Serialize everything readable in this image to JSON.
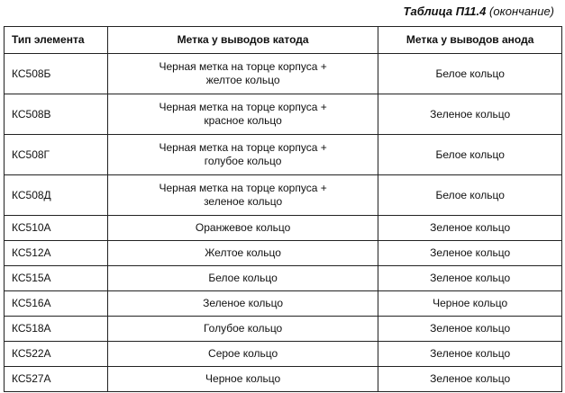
{
  "caption": {
    "label": "Таблица П11.4",
    "note": "(окончание)"
  },
  "table": {
    "headers": [
      "Тип элемента",
      "Метка у выводов катода",
      "Метка у выводов анода"
    ],
    "rows": [
      {
        "type": "КС508Б",
        "cathode": [
          "Черная метка на торце корпуса +",
          "желтое кольцо"
        ],
        "anode": "Белое кольцо"
      },
      {
        "type": "КС508В",
        "cathode": [
          "Черная метка на торце корпуса +",
          "красное кольцо"
        ],
        "anode": "Зеленое кольцо"
      },
      {
        "type": "КС508Г",
        "cathode": [
          "Черная метка на торце корпуса +",
          "голубое кольцо"
        ],
        "anode": "Белое кольцо"
      },
      {
        "type": "КС508Д",
        "cathode": [
          "Черная метка на торце корпуса +",
          "зеленое кольцо"
        ],
        "anode": "Белое кольцо"
      },
      {
        "type": "КС510А",
        "cathode": [
          "Оранжевое кольцо"
        ],
        "anode": "Зеленое кольцо"
      },
      {
        "type": "КС512А",
        "cathode": [
          "Желтое кольцо"
        ],
        "anode": "Зеленое кольцо"
      },
      {
        "type": "КС515А",
        "cathode": [
          "Белое кольцо"
        ],
        "anode": "Зеленое кольцо"
      },
      {
        "type": "КС516А",
        "cathode": [
          "Зеленое кольцо"
        ],
        "anode": "Черное кольцо"
      },
      {
        "type": "КС518А",
        "cathode": [
          "Голубое кольцо"
        ],
        "anode": "Зеленое кольцо"
      },
      {
        "type": "КС522А",
        "cathode": [
          "Серое кольцо"
        ],
        "anode": "Зеленое кольцо"
      },
      {
        "type": "КС527А",
        "cathode": [
          "Черное кольцо"
        ],
        "anode": "Зеленое кольцо"
      }
    ]
  }
}
